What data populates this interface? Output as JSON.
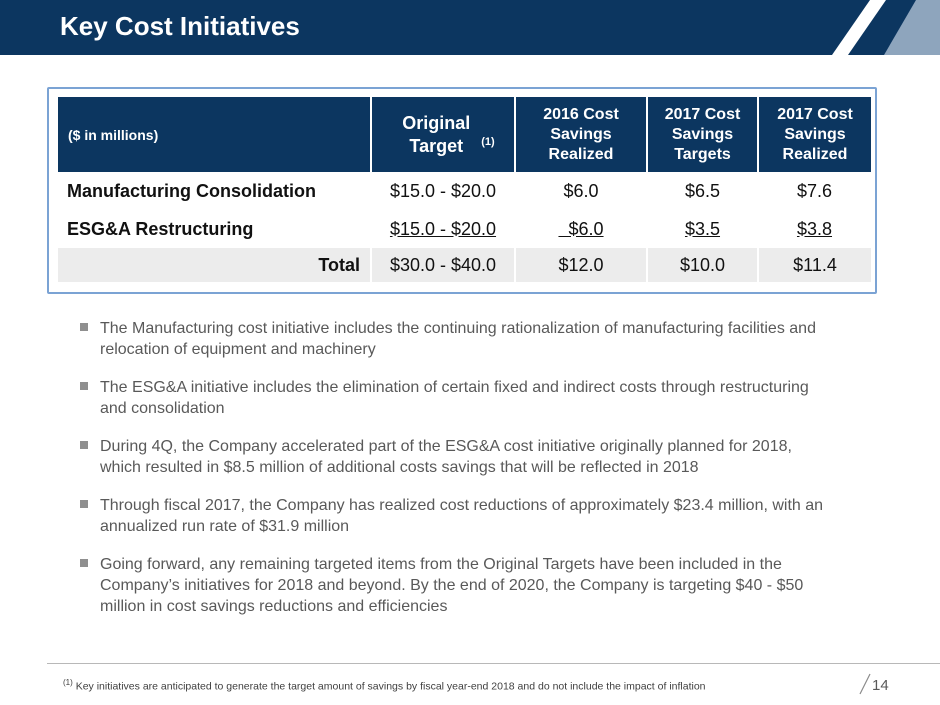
{
  "header": {
    "title": "Key Cost Initiatives"
  },
  "table": {
    "columns": {
      "label": "($ in millions)",
      "original": "Original Target",
      "original_note": "(1)",
      "realized_2016": [
        "2016 Cost",
        "Savings",
        "Realized"
      ],
      "targets_2017": [
        "2017 Cost",
        "Savings",
        "Targets"
      ],
      "realized_2017": [
        "2017 Cost",
        "Savings",
        "Realized"
      ]
    },
    "rows": [
      {
        "label": "Manufacturing Consolidation",
        "original": "$15.0 - $20.0",
        "realized_2016": "$6.0",
        "targets_2017": "$6.5",
        "realized_2017": "$7.6"
      },
      {
        "label": "ESG&A Restructuring",
        "original": "$15.0 - $20.0",
        "realized_2016": "$6.0",
        "targets_2017": "$3.5",
        "realized_2017": "$3.8"
      },
      {
        "label": "Total",
        "original": "$30.0 - $40.0",
        "realized_2016": "$12.0",
        "targets_2017": "$10.0",
        "realized_2017": "$11.4"
      }
    ]
  },
  "bullets": [
    "The Manufacturing cost initiative includes the continuing rationalization of manufacturing facilities and relocation of equipment and machinery",
    "The ESG&A initiative includes the elimination of certain fixed and indirect costs through restructuring and consolidation",
    "During 4Q, the Company accelerated part of the ESG&A cost initiative originally planned for 2018, which resulted in $8.5 million of additional costs savings that will be reflected in 2018",
    "Through fiscal 2017, the Company has realized cost reductions of approximately $23.4 million, with an annualized run rate of $31.9 million",
    "Going forward, any remaining targeted items from the Original Targets have been included in the Company’s initiatives for 2018 and beyond. By the end of 2020, the Company is targeting $40 - $50 million in cost savings reductions and efficiencies"
  ],
  "footer": {
    "footnote_marker": "(1)",
    "footnote_text": "Key initiatives are anticipated to generate the target amount of savings by fiscal year-end 2018 and do not include the impact of inflation",
    "page_number": "14"
  },
  "colors": {
    "header": "#0c3660",
    "frame": "#7ba3d4",
    "total_row": "#ececec"
  }
}
